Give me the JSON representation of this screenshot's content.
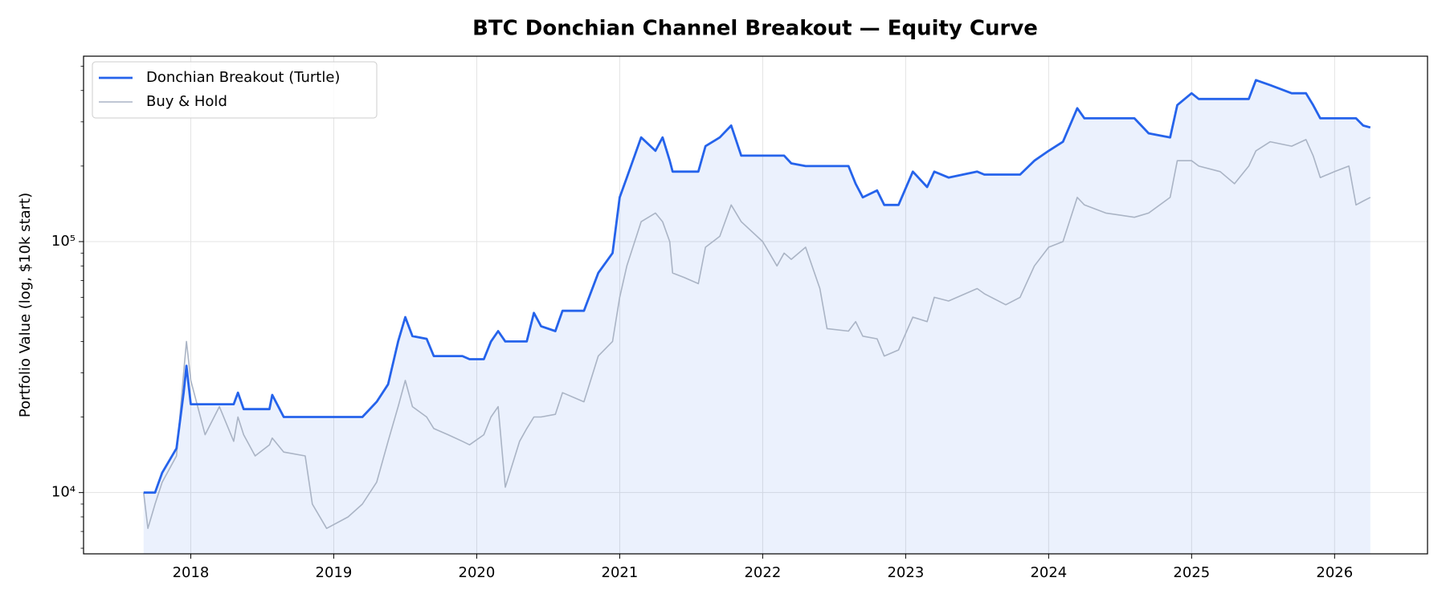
{
  "chart_data": {
    "type": "line",
    "title": "BTC Donchian Channel Breakout — Equity Curve",
    "y_label": "Portfolio Value (log, $10k start)",
    "log_y": true,
    "minor_ticks": true,
    "grid": true,
    "legend": "upper left",
    "x": [
      2017.67,
      2017.7,
      2017.75,
      2017.8,
      2017.9,
      2017.95,
      2017.97,
      2018.0,
      2018.1,
      2018.2,
      2018.3,
      2018.33,
      2018.37,
      2018.45,
      2018.55,
      2018.57,
      2018.65,
      2018.8,
      2018.85,
      2018.95,
      2019.1,
      2019.2,
      2019.3,
      2019.38,
      2019.45,
      2019.5,
      2019.55,
      2019.65,
      2019.7,
      2019.8,
      2019.9,
      2019.95,
      2020.05,
      2020.1,
      2020.15,
      2020.2,
      2020.3,
      2020.35,
      2020.4,
      2020.45,
      2020.55,
      2020.6,
      2020.75,
      2020.85,
      2020.95,
      2021.0,
      2021.05,
      2021.15,
      2021.25,
      2021.3,
      2021.35,
      2021.37,
      2021.45,
      2021.55,
      2021.6,
      2021.7,
      2021.78,
      2021.85,
      2022.0,
      2022.1,
      2022.15,
      2022.2,
      2022.3,
      2022.4,
      2022.45,
      2022.6,
      2022.65,
      2022.7,
      2022.8,
      2022.85,
      2022.95,
      2023.05,
      2023.15,
      2023.2,
      2023.3,
      2023.5,
      2023.55,
      2023.7,
      2023.8,
      2023.9,
      2024.0,
      2024.1,
      2024.2,
      2024.25,
      2024.4,
      2024.6,
      2024.7,
      2024.85,
      2024.9,
      2025.0,
      2025.05,
      2025.2,
      2025.3,
      2025.4,
      2025.45,
      2025.55,
      2025.7,
      2025.8,
      2025.85,
      2025.9,
      2026.0,
      2026.1,
      2026.15,
      2026.2,
      2026.25
    ],
    "series": [
      {
        "name": "Donchian Breakout (Turtle)",
        "color": "#2563eb",
        "fill": true,
        "values": [
          10000,
          10000,
          10000,
          12000,
          15000,
          25000,
          32000,
          22500,
          22500,
          22500,
          22500,
          25000,
          21500,
          21500,
          21500,
          24500,
          20000,
          20000,
          20000,
          20000,
          20000,
          20000,
          23000,
          27000,
          40000,
          50000,
          42000,
          41000,
          35000,
          35000,
          35000,
          34000,
          34000,
          40000,
          44000,
          40000,
          40000,
          40000,
          52000,
          46000,
          44000,
          53000,
          53000,
          75000,
          90000,
          150000,
          180000,
          260000,
          230000,
          260000,
          210000,
          190000,
          190000,
          190000,
          240000,
          260000,
          290000,
          220000,
          220000,
          220000,
          220000,
          205000,
          200000,
          200000,
          200000,
          200000,
          170000,
          150000,
          160000,
          140000,
          140000,
          190000,
          165000,
          190000,
          180000,
          190000,
          185000,
          185000,
          185000,
          210000,
          230000,
          250000,
          340000,
          310000,
          310000,
          310000,
          270000,
          260000,
          350000,
          390000,
          370000,
          370000,
          370000,
          370000,
          440000,
          420000,
          390000,
          390000,
          350000,
          310000,
          310000,
          310000,
          310000,
          290000,
          285000
        ]
      },
      {
        "name": "Buy & Hold",
        "color": "#aab4c5",
        "values": [
          10000,
          7200,
          9000,
          11000,
          14000,
          30000,
          40000,
          28000,
          17000,
          22000,
          16000,
          20000,
          17000,
          14000,
          15500,
          16500,
          14500,
          14000,
          9000,
          7200,
          8000,
          9000,
          11000,
          16000,
          22000,
          28000,
          22000,
          20000,
          18000,
          17000,
          16000,
          15500,
          17000,
          20000,
          22000,
          10500,
          16000,
          18000,
          20000,
          20000,
          20500,
          25000,
          23000,
          35000,
          40000,
          60000,
          80000,
          120000,
          130000,
          120000,
          100000,
          75000,
          72000,
          68000,
          95000,
          105000,
          140000,
          120000,
          100000,
          80000,
          90000,
          85000,
          95000,
          65000,
          45000,
          44000,
          48000,
          42000,
          41000,
          35000,
          37000,
          50000,
          48000,
          60000,
          58000,
          65000,
          62000,
          56000,
          60000,
          80000,
          95000,
          100000,
          150000,
          140000,
          130000,
          125000,
          130000,
          150000,
          210000,
          210000,
          200000,
          190000,
          170000,
          200000,
          230000,
          250000,
          240000,
          255000,
          220000,
          180000,
          190000,
          200000,
          140000,
          145000,
          150000
        ]
      }
    ],
    "xlim": [
      2017.25,
      2026.65
    ],
    "xticks": [
      2018,
      2019,
      2020,
      2021,
      2022,
      2023,
      2024,
      2025,
      2026
    ],
    "ylim": [
      5700,
      548000
    ],
    "yticks": [
      {
        "value": 10000,
        "label": "10⁴"
      },
      {
        "value": 100000,
        "label": "10⁵"
      }
    ]
  }
}
